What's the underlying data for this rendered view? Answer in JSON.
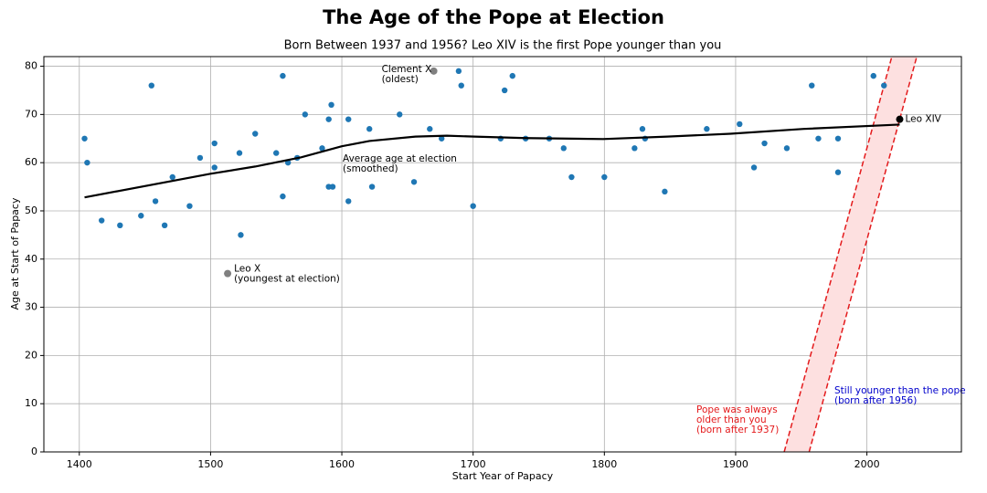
{
  "chart_data": {
    "type": "scatter",
    "title": "The Age of the Pope at Election",
    "subtitle": "Born Between 1937 and 1956? Leo XIV is the first Pope younger than you",
    "x_label": "Start Year of Papacy",
    "y_label": "Age at Start of Papacy",
    "xlim": [
      1373,
      2072
    ],
    "ylim": [
      0,
      82
    ],
    "xticks": [
      1400,
      1500,
      1600,
      1700,
      1800,
      1900,
      2000
    ],
    "yticks": [
      0,
      10,
      20,
      30,
      40,
      50,
      60,
      70,
      80
    ],
    "grid": true,
    "series": [
      {
        "color": "#1f77b4",
        "x": [
          1404,
          1406,
          1417,
          1431,
          1447,
          1455,
          1458,
          1465,
          1471,
          1484,
          1492,
          1503,
          1503,
          1522,
          1523,
          1534,
          1550,
          1555,
          1555,
          1559,
          1566,
          1572,
          1585,
          1590,
          1592,
          1590,
          1593,
          1605,
          1605,
          1621,
          1623,
          1644,
          1655,
          1667,
          1676,
          1689,
          1691,
          1700,
          1721,
          1724,
          1730,
          1740,
          1758,
          1769,
          1775,
          1800,
          1823,
          1829,
          1831,
          1846,
          1878,
          1903,
          1914,
          1922,
          1939,
          1958,
          1963,
          1978,
          1978,
          2005,
          2013
        ],
        "values": [
          65,
          60,
          48,
          47,
          49,
          76,
          52,
          47,
          57,
          51,
          61,
          64,
          59,
          62,
          45,
          66,
          62,
          78,
          53,
          60,
          61,
          70,
          63,
          69,
          72,
          55,
          55,
          69,
          52,
          67,
          55,
          70,
          56,
          67,
          65,
          79,
          76,
          51,
          65,
          75,
          78,
          65,
          65,
          63,
          57,
          57,
          63,
          67,
          65,
          54,
          67,
          68,
          59,
          64,
          63,
          76,
          65,
          65,
          58,
          78,
          76
        ]
      }
    ],
    "smoothed": {
      "color": "#000000",
      "label": [
        "Average age at election",
        "(smoothed)"
      ],
      "x": [
        1404,
        1500,
        1534,
        1569,
        1600,
        1621,
        1656,
        1680,
        1701,
        1740,
        1799,
        1848,
        1896,
        1952,
        2025
      ],
      "values": [
        52.8,
        57.7,
        59.2,
        61.1,
        63.4,
        64.5,
        65.4,
        65.6,
        65.4,
        65.1,
        64.9,
        65.4,
        66.0,
        67.0,
        67.9
      ]
    },
    "highlights": [
      {
        "label": [
          "Clement X",
          "(oldest)"
        ],
        "x": 1670,
        "y": 79,
        "color": "#808080"
      },
      {
        "label": [
          "Leo X",
          "(youngest at election)"
        ],
        "x": 1513,
        "y": 37,
        "color": "#808080"
      },
      {
        "label": [
          "Leo XIV"
        ],
        "x": 2025,
        "y": 69,
        "color": "#000000"
      }
    ],
    "band": {
      "birth_years": [
        1937,
        1956
      ],
      "line_color": "#e41a1c",
      "fill": "#fde0e0",
      "older_label": {
        "lines": [
          "Pope was always",
          "older than you",
          "(born after 1937)"
        ],
        "color": "#e41a1c"
      },
      "younger_label": {
        "lines": [
          "Still younger than the pope",
          "(born after 1956)"
        ],
        "color": "#0000cc"
      }
    }
  }
}
